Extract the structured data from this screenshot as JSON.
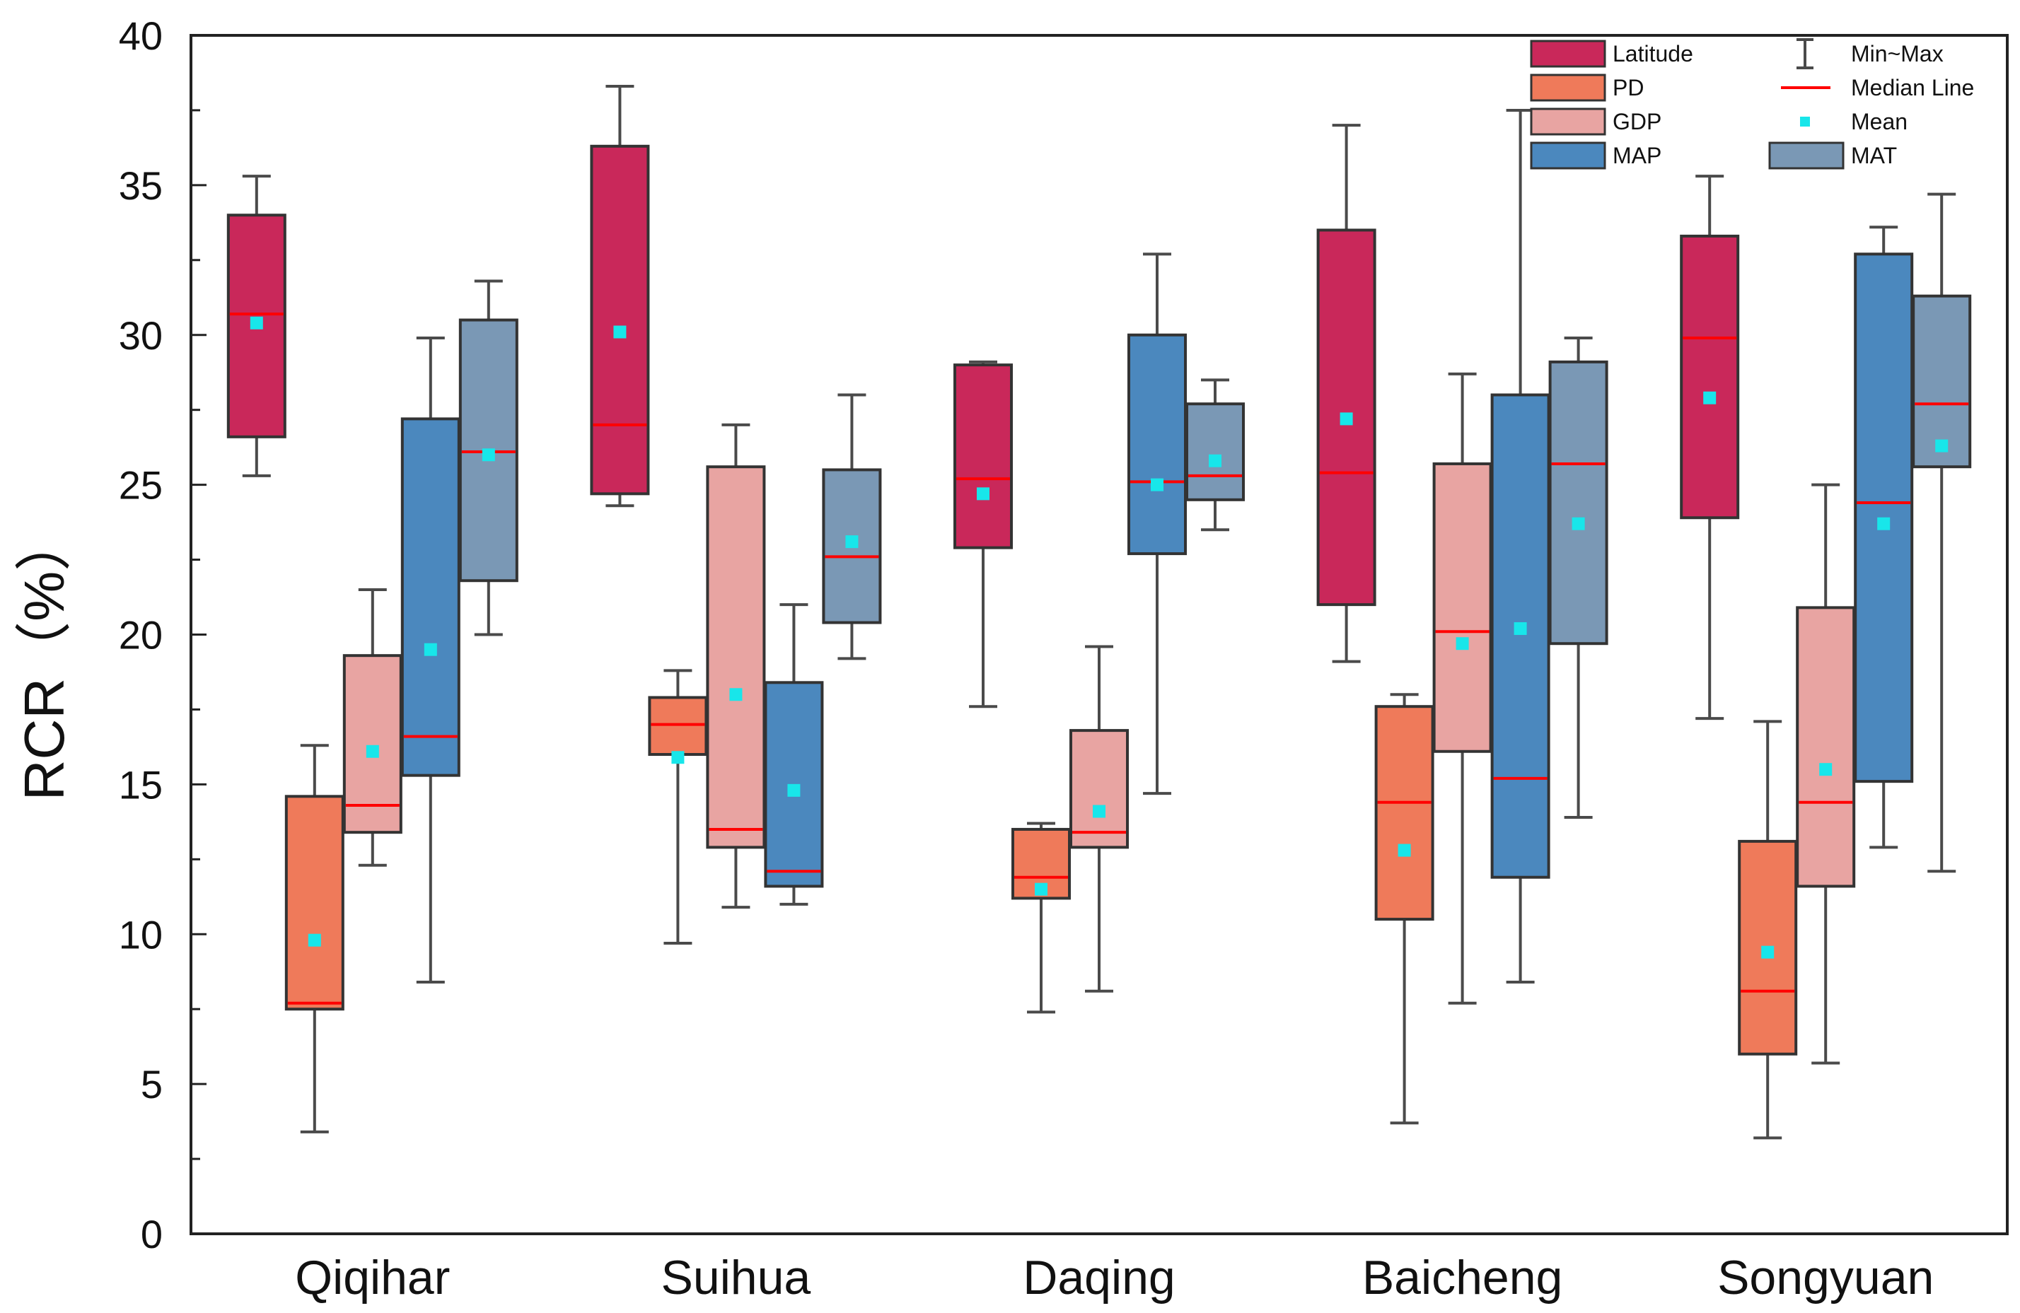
{
  "chart_data": {
    "type": "box",
    "title": "",
    "xlabel": "",
    "ylabel": "RCR（%）",
    "ylim": [
      0,
      40
    ],
    "yticks": [
      0,
      5,
      10,
      15,
      20,
      25,
      30,
      35,
      40
    ],
    "categories": [
      "Qiqihar",
      "Suihua",
      "Daqing",
      "Baicheng",
      "Songyuan"
    ],
    "series": [
      {
        "name": "Latitude",
        "color": "#c9285a",
        "boxes": [
          {
            "min": 25.3,
            "q1": 26.6,
            "median": 30.7,
            "q3": 34.0,
            "max": 35.3,
            "mean": 30.4
          },
          {
            "min": 24.3,
            "q1": 24.7,
            "median": 27.0,
            "q3": 36.3,
            "max": 38.3,
            "mean": 30.1
          },
          {
            "min": 17.6,
            "q1": 22.9,
            "median": 25.2,
            "q3": 29.0,
            "max": 29.1,
            "mean": 24.7
          },
          {
            "min": 19.1,
            "q1": 21.0,
            "median": 25.4,
            "q3": 33.5,
            "max": 37.0,
            "mean": 27.2
          },
          {
            "min": 17.2,
            "q1": 23.9,
            "median": 29.9,
            "q3": 33.3,
            "max": 35.3,
            "mean": 27.9
          }
        ]
      },
      {
        "name": "PD",
        "color": "#ef7a5a",
        "boxes": [
          {
            "min": 3.4,
            "q1": 7.5,
            "median": 7.7,
            "q3": 14.6,
            "max": 16.3,
            "mean": 9.8
          },
          {
            "min": 9.7,
            "q1": 16.0,
            "median": 17.0,
            "q3": 17.9,
            "max": 18.8,
            "mean": 15.9
          },
          {
            "min": 7.4,
            "q1": 11.2,
            "median": 11.9,
            "q3": 13.5,
            "max": 13.7,
            "mean": 11.5
          },
          {
            "min": 3.7,
            "q1": 10.5,
            "median": 14.4,
            "q3": 17.6,
            "max": 18.0,
            "mean": 12.8
          },
          {
            "min": 3.2,
            "q1": 6.0,
            "median": 8.1,
            "q3": 13.1,
            "max": 17.1,
            "mean": 9.4
          }
        ]
      },
      {
        "name": "GDP",
        "color": "#e8a4a2",
        "boxes": [
          {
            "min": 12.3,
            "q1": 13.4,
            "median": 14.3,
            "q3": 19.3,
            "max": 21.5,
            "mean": 16.1
          },
          {
            "min": 10.9,
            "q1": 12.9,
            "median": 13.5,
            "q3": 25.6,
            "max": 27.0,
            "mean": 18.0
          },
          {
            "min": 8.1,
            "q1": 12.9,
            "median": 13.4,
            "q3": 16.8,
            "max": 19.6,
            "mean": 14.1
          },
          {
            "min": 7.7,
            "q1": 16.1,
            "median": 20.1,
            "q3": 25.7,
            "max": 28.7,
            "mean": 19.7
          },
          {
            "min": 5.7,
            "q1": 11.6,
            "median": 14.4,
            "q3": 20.9,
            "max": 25.0,
            "mean": 15.5
          }
        ]
      },
      {
        "name": "MAP",
        "color": "#4b88be",
        "boxes": [
          {
            "min": 8.4,
            "q1": 15.3,
            "median": 16.6,
            "q3": 27.2,
            "max": 29.9,
            "mean": 19.5
          },
          {
            "min": 11.0,
            "q1": 11.6,
            "median": 12.1,
            "q3": 18.4,
            "max": 21.0,
            "mean": 14.8
          },
          {
            "min": 14.7,
            "q1": 22.7,
            "median": 25.1,
            "q3": 30.0,
            "max": 32.7,
            "mean": 25.0
          },
          {
            "min": 8.4,
            "q1": 11.9,
            "median": 15.2,
            "q3": 28.0,
            "max": 37.5,
            "mean": 20.2
          },
          {
            "min": 12.9,
            "q1": 15.1,
            "median": 24.4,
            "q3": 32.7,
            "max": 33.6,
            "mean": 23.7
          }
        ]
      },
      {
        "name": "MAT",
        "color": "#7a98b5",
        "boxes": [
          {
            "min": 20.0,
            "q1": 21.8,
            "median": 26.1,
            "q3": 30.5,
            "max": 31.8,
            "mean": 26.0
          },
          {
            "min": 19.2,
            "q1": 20.4,
            "median": 22.6,
            "q3": 25.5,
            "max": 28.0,
            "mean": 23.1
          },
          {
            "min": 23.5,
            "q1": 24.5,
            "median": 25.3,
            "q3": 27.7,
            "max": 28.5,
            "mean": 25.8
          },
          {
            "min": 13.9,
            "q1": 19.7,
            "median": 25.7,
            "q3": 29.1,
            "max": 29.9,
            "mean": 23.7
          },
          {
            "min": 12.1,
            "q1": 25.6,
            "median": 27.7,
            "q3": 31.3,
            "max": 34.7,
            "mean": 26.3
          }
        ]
      }
    ],
    "legend": {
      "position": "top-right",
      "minmax_label": "Min~Max",
      "median_label": "Median Line",
      "mean_label": "Mean"
    },
    "colors": {
      "median": "#ff0000",
      "mean": "#18e6ea",
      "whisker": "#4a4a4a"
    }
  }
}
